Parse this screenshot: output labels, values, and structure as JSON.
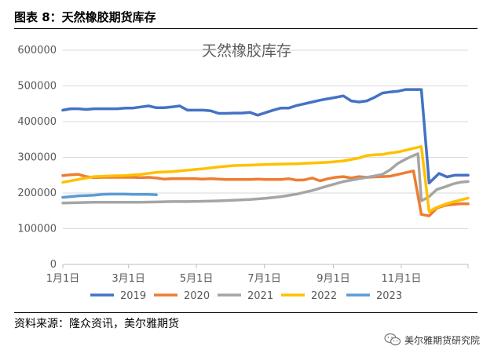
{
  "figure": {
    "caption": "图表 8：天然橡胶期货库存",
    "source": "资料来源：隆众资讯，美尔雅期货",
    "watermark": "美尔雅期货研究院",
    "watermark_icon": "wechat-icon"
  },
  "chart_data": {
    "type": "line",
    "title": "天然橡胶库存",
    "xlabel": "",
    "ylabel": "",
    "ylim": [
      0,
      600000
    ],
    "y_ticks": [
      0,
      100000,
      200000,
      300000,
      400000,
      500000,
      600000
    ],
    "y_tick_labels": [
      "0",
      "100000",
      "200000",
      "300000",
      "400000",
      "500000",
      "600000"
    ],
    "x_ticks": [
      1,
      60,
      121,
      182,
      244,
      305
    ],
    "x_tick_labels": [
      "1月1日",
      "3月1日",
      "5月1日",
      "7月1日",
      "9月1日",
      "11月1日"
    ],
    "x_range": [
      1,
      365
    ],
    "grid": true,
    "legend_position": "bottom",
    "series": [
      {
        "name": "2019",
        "color": "#4472C4",
        "x": [
          1,
          8,
          15,
          22,
          29,
          36,
          43,
          50,
          57,
          64,
          71,
          78,
          85,
          92,
          99,
          106,
          113,
          120,
          127,
          134,
          141,
          148,
          155,
          162,
          169,
          176,
          183,
          190,
          197,
          204,
          211,
          218,
          225,
          232,
          239,
          246,
          253,
          260,
          267,
          274,
          281,
          288,
          295,
          302,
          309,
          316,
          323,
          330,
          334,
          339,
          346,
          353,
          360,
          365
        ],
        "y": [
          432000,
          436000,
          436000,
          434000,
          436000,
          436000,
          436000,
          436000,
          438000,
          438000,
          441000,
          444000,
          439000,
          439000,
          441000,
          444000,
          432000,
          432000,
          432000,
          430000,
          423000,
          423000,
          424000,
          424000,
          426000,
          418000,
          425000,
          432000,
          438000,
          438000,
          445000,
          450000,
          455000,
          460000,
          464000,
          468000,
          472000,
          458000,
          455000,
          458000,
          468000,
          480000,
          483000,
          485000,
          490000,
          490000,
          490000,
          228000,
          240000,
          255000,
          245000,
          250000,
          250000,
          250000
        ]
      },
      {
        "name": "2020",
        "color": "#ED7D31",
        "x": [
          1,
          8,
          15,
          22,
          29,
          36,
          43,
          50,
          57,
          64,
          71,
          78,
          85,
          92,
          99,
          106,
          113,
          120,
          127,
          134,
          141,
          148,
          155,
          162,
          169,
          176,
          183,
          190,
          197,
          204,
          211,
          218,
          225,
          232,
          239,
          246,
          253,
          260,
          267,
          274,
          281,
          288,
          295,
          302,
          309,
          316,
          323,
          330,
          337,
          344,
          351,
          358,
          365
        ],
        "y": [
          249000,
          251000,
          252000,
          246000,
          243000,
          244000,
          244000,
          244000,
          244000,
          244000,
          243000,
          244000,
          242000,
          239000,
          240000,
          240000,
          240000,
          240000,
          239000,
          240000,
          239000,
          238000,
          238000,
          238000,
          238000,
          239000,
          238000,
          238000,
          238000,
          240000,
          236000,
          237000,
          242000,
          234000,
          240000,
          244000,
          246000,
          242000,
          246000,
          244000,
          245000,
          246000,
          247000,
          252000,
          257000,
          262000,
          140000,
          136000,
          158000,
          165000,
          168000,
          170000,
          170000
        ]
      },
      {
        "name": "2021",
        "color": "#A5A5A5",
        "x": [
          1,
          15,
          29,
          43,
          57,
          71,
          85,
          99,
          113,
          127,
          141,
          155,
          169,
          183,
          197,
          211,
          225,
          239,
          253,
          267,
          281,
          288,
          295,
          302,
          309,
          316,
          320,
          323,
          330,
          337,
          344,
          351,
          358,
          365
        ],
        "y": [
          172000,
          173000,
          174000,
          174000,
          174000,
          174000,
          175000,
          176000,
          176000,
          177000,
          178000,
          180000,
          182000,
          185000,
          190000,
          197000,
          207000,
          220000,
          232000,
          240000,
          248000,
          252000,
          265000,
          283000,
          295000,
          305000,
          310000,
          178000,
          190000,
          210000,
          217000,
          225000,
          230000,
          232000
        ]
      },
      {
        "name": "2022",
        "color": "#FFC000",
        "x": [
          1,
          15,
          29,
          43,
          57,
          71,
          85,
          99,
          113,
          127,
          141,
          155,
          169,
          183,
          197,
          211,
          225,
          239,
          253,
          267,
          274,
          281,
          288,
          295,
          302,
          309,
          316,
          323,
          330,
          337,
          344,
          351,
          358,
          365
        ],
        "y": [
          230000,
          238000,
          246000,
          248000,
          249000,
          252000,
          258000,
          260000,
          264000,
          268000,
          273000,
          277000,
          278000,
          280000,
          281000,
          282000,
          284000,
          286000,
          290000,
          298000,
          305000,
          307000,
          308000,
          312000,
          315000,
          320000,
          325000,
          330000,
          148000,
          160000,
          168000,
          175000,
          180000,
          186000
        ]
      },
      {
        "name": "2023",
        "color": "#5B9BD5",
        "x": [
          1,
          8,
          15,
          22,
          29,
          36,
          43,
          50,
          57,
          64,
          71,
          78,
          85
        ],
        "y": [
          188000,
          190000,
          192000,
          193000,
          194000,
          196000,
          197000,
          197000,
          197000,
          196000,
          196000,
          196000,
          195000
        ]
      }
    ]
  }
}
